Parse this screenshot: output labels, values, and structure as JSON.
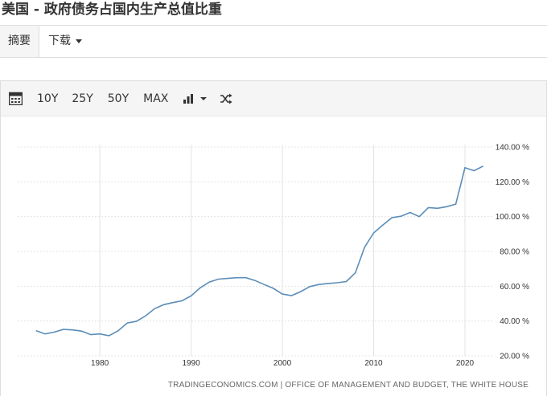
{
  "title": "美国 - 政府债务占国内生产总值比重",
  "tabs": {
    "summary": "摘要",
    "download": "下载"
  },
  "toolbar": {
    "range_buttons": [
      "10Y",
      "25Y",
      "50Y",
      "MAX"
    ],
    "icons": [
      "calendar-icon",
      "bar-chart-icon",
      "chevron-down-icon",
      "shuffle-icon"
    ]
  },
  "source": "TRADINGECONOMICS.COM | OFFICE OF MANAGEMENT AND BUDGET, THE WHITE HOUSE",
  "colors": {
    "line": "#5b8db8",
    "grid": "#e4e4e4",
    "toolbar_bg": "#f5f5f5"
  },
  "chart_data": {
    "type": "line",
    "title": "",
    "xlabel": "",
    "ylabel": "",
    "xlim": [
      1971,
      2023
    ],
    "ylim": [
      20,
      140
    ],
    "grid": true,
    "y_ticks": [
      20,
      40,
      60,
      80,
      100,
      120,
      140
    ],
    "y_tick_labels": [
      "20.00 %",
      "40.00 %",
      "60.00 %",
      "80.00 %",
      "100.00 %",
      "120.00 %",
      "140.00 %"
    ],
    "x_ticks": [
      1980,
      1990,
      2000,
      2010,
      2020
    ],
    "x_tick_labels": [
      "1980",
      "1990",
      "2000",
      "2010",
      "2020"
    ],
    "series": [
      {
        "x": [
          1973,
          1974,
          1975,
          1976,
          1977,
          1978,
          1979,
          1980,
          1981,
          1982,
          1983,
          1984,
          1985,
          1986,
          1987,
          1988,
          1989,
          1990,
          1991,
          1992,
          1993,
          1994,
          1995,
          1996,
          1997,
          1998,
          1999,
          2000,
          2001,
          2002,
          2003,
          2004,
          2005,
          2006,
          2007,
          2008,
          2009,
          2010,
          2011,
          2012,
          2013,
          2014,
          2015,
          2016,
          2017,
          2018,
          2019,
          2020,
          2021,
          2022
        ],
        "values": [
          34.5,
          32.6,
          33.6,
          35.2,
          34.9,
          34.2,
          32.2,
          32.6,
          31.6,
          34.4,
          38.9,
          39.8,
          42.9,
          47.1,
          49.4,
          50.6,
          51.6,
          54.5,
          59.1,
          62.4,
          64.1,
          64.5,
          64.9,
          64.9,
          63.3,
          61.0,
          58.8,
          55.5,
          54.6,
          56.9,
          59.8,
          61.0,
          61.6,
          62.0,
          62.7,
          67.7,
          82.4,
          90.6,
          95.1,
          99.4,
          100.2,
          102.4,
          100.0,
          105.2,
          104.8,
          105.7,
          107.2,
          128.1,
          126.4,
          129.0
        ]
      }
    ]
  }
}
